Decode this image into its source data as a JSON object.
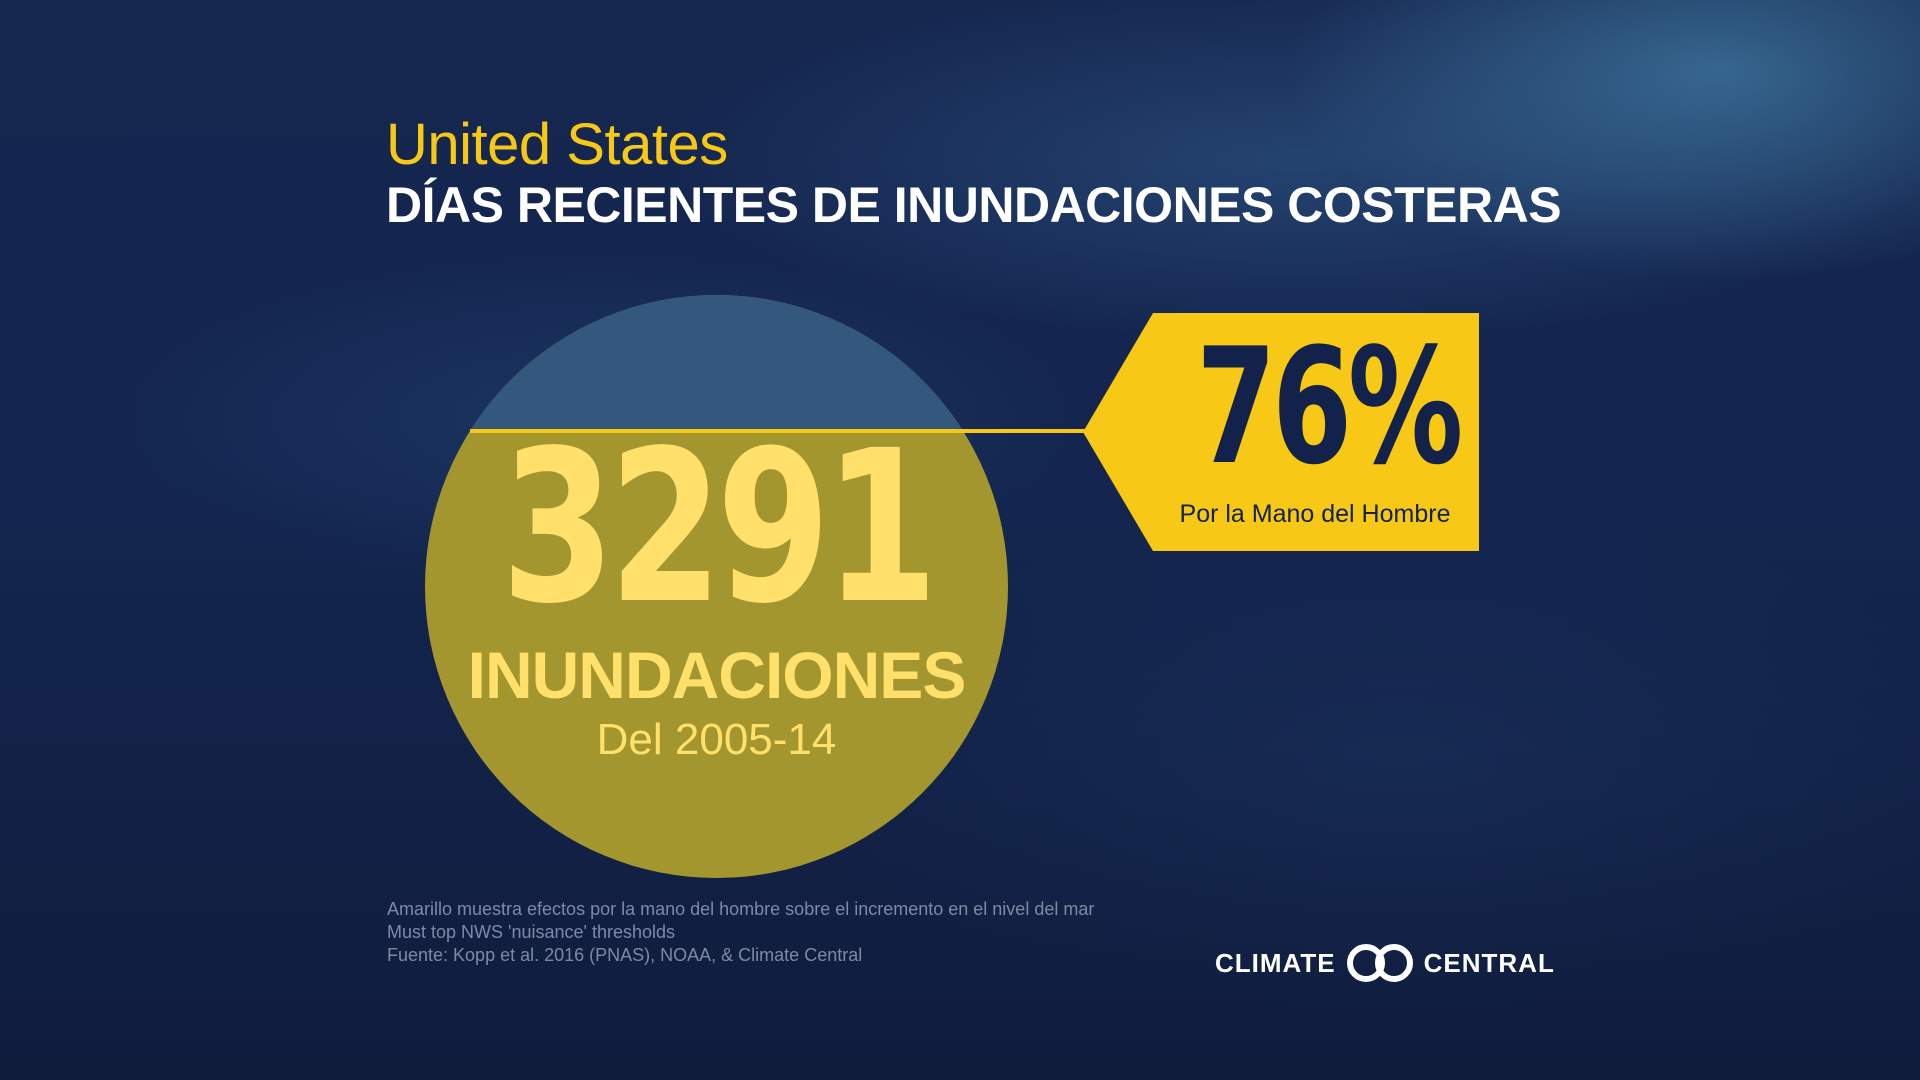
{
  "header": {
    "region": "United States",
    "title": "DÍAS RECIENTES DE INUNDACIONES COSTERAS"
  },
  "main_stat": {
    "value": "3291",
    "label": "INUNDACIONES",
    "period": "Del 2005-14"
  },
  "callout": {
    "value": "76%",
    "label": "Por la Mano del Hombre"
  },
  "footnotes": [
    "Amarillo muestra efectos por la mano del hombre sobre el incremento en el nivel del mar",
    "Must top NWS 'nuisance' thresholds",
    "Fuente: Kopp et al. 2016 (PNAS), NOAA, & Climate Central"
  ],
  "brand": {
    "left": "CLIMATE",
    "right": "CENTRAL",
    "logo_icon": "climate-central-rings-icon"
  },
  "colors": {
    "accent_yellow": "#f7c816",
    "circle_yellow": "#a4962f",
    "circle_blue": "#33577d",
    "number_yellow": "#ffe06a",
    "navy": "#13224a",
    "background": "#142650"
  }
}
